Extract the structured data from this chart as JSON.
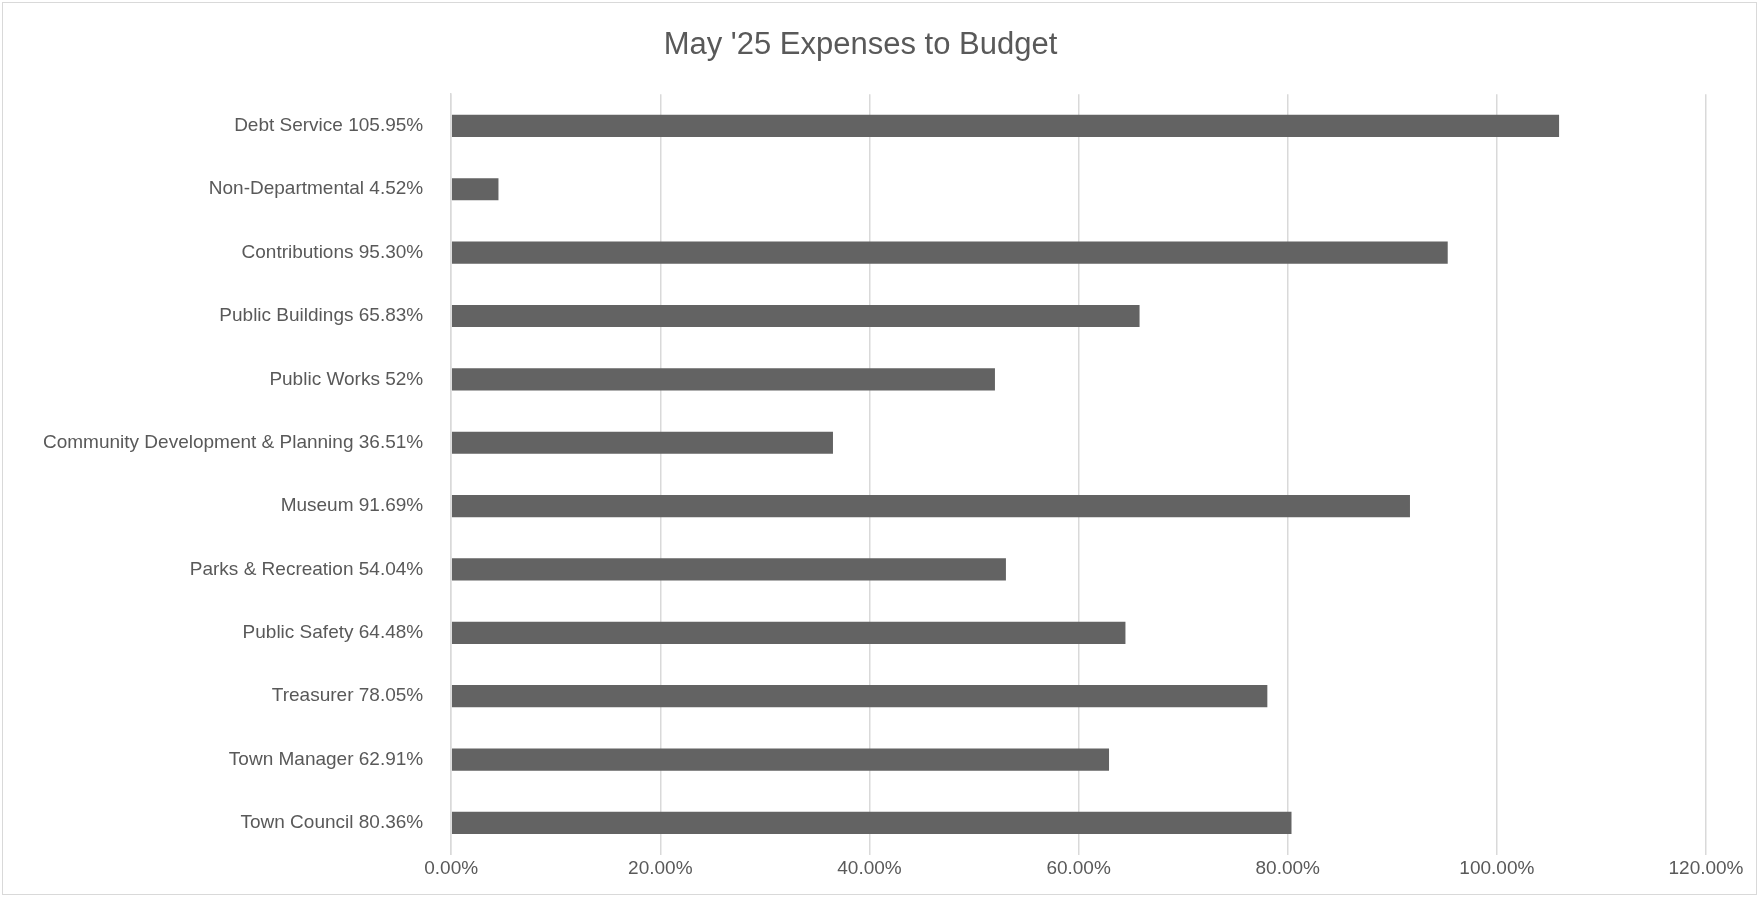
{
  "chart_data": {
    "type": "bar",
    "orientation": "horizontal",
    "title": "May '25 Expenses to Budget",
    "categories": [
      "Debt Service 105.95%",
      "Non-Departmental 4.52%",
      "Contributions 95.30%",
      "Public Buildings 65.83%",
      "Public Works 52%",
      "Community Development & Planning 36.51%",
      "Museum 91.69%",
      "Parks & Recreation 54.04%",
      "Public Safety 64.48%",
      "Treasurer 78.05%",
      "Town Manager 62.91%",
      "Town Council 80.36%"
    ],
    "values": [
      105.95,
      4.52,
      95.3,
      65.83,
      52,
      36.51,
      91.69,
      53.05,
      64.48,
      78.05,
      62.91,
      80.36
    ],
    "color": "#636363",
    "xlim": [
      0,
      120
    ],
    "xticks": [
      {
        "value": 0,
        "label": "0.00%"
      },
      {
        "value": 20,
        "label": "20.00%"
      },
      {
        "value": 40,
        "label": "40.00%"
      },
      {
        "value": 60,
        "label": "60.00%"
      },
      {
        "value": 80,
        "label": "80.00%"
      },
      {
        "value": 100,
        "label": "100.00%"
      },
      {
        "value": 120,
        "label": "120.00%"
      }
    ],
    "grid": "x",
    "legend": false
  }
}
